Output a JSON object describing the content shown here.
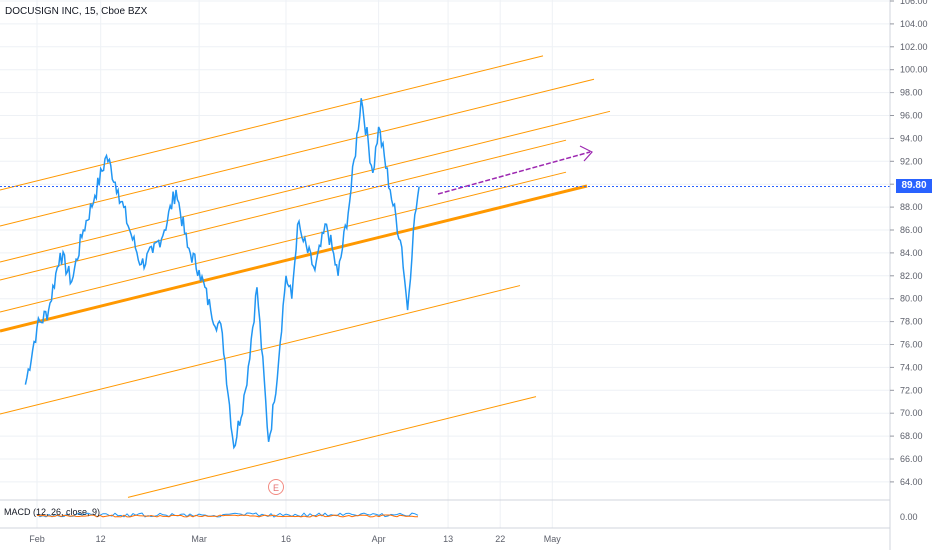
{
  "header": {
    "title": "DOCUSIGN INC, 15, Cboe BZX"
  },
  "indicator": {
    "macd_label": "MACD (12, 26, close, 9)",
    "macd_value": "0.00"
  },
  "price_tag": {
    "value": "89.80",
    "color": "#2962ff"
  },
  "earnings_badge": {
    "letter": "E"
  },
  "colors": {
    "price_line": "#2196f3",
    "pitchfork": "#ff9800",
    "projection_arrow": "#9c27b0",
    "grid": "#eef1f5",
    "last_price_line": "#2962ff"
  },
  "chart_data": {
    "type": "line",
    "title": "DOCUSIGN INC, 15, Cboe BZX",
    "xlabel": "",
    "ylabel": "",
    "ylim": [
      62.5,
      106.5
    ],
    "y_ticks": [
      "106.00",
      "104.00",
      "102.00",
      "100.00",
      "98.00",
      "96.00",
      "94.00",
      "92.00",
      "90.00",
      "88.00",
      "86.00",
      "84.00",
      "82.00",
      "80.00",
      "78.00",
      "76.00",
      "74.00",
      "72.00",
      "70.00",
      "68.00",
      "66.00",
      "64.00"
    ],
    "x_ticks": [
      "Feb",
      "12",
      "Mar",
      "16",
      "Apr",
      "13",
      "22",
      "May"
    ],
    "last_price": 89.8,
    "grid": true,
    "series": [
      {
        "name": "DOCU",
        "x": [
          "Jan 30",
          "Feb 1",
          "Feb 3",
          "Feb 5",
          "Feb 7",
          "Feb 9",
          "Feb 11",
          "Feb 13",
          "Feb 15",
          "Feb 17",
          "Feb 19",
          "Feb 21",
          "Feb 23",
          "Feb 25",
          "Feb 27",
          "Mar 1",
          "Mar 3",
          "Mar 5",
          "Mar 7",
          "Mar 9",
          "Mar 11",
          "Mar 13",
          "Mar 14",
          "Mar 16",
          "Mar 17",
          "Mar 18",
          "Mar 19",
          "Mar 21",
          "Mar 23",
          "Mar 25",
          "Mar 27",
          "Mar 29",
          "Mar 31",
          "Apr 1",
          "Apr 3",
          "Apr 5",
          "Apr 6",
          "Apr 7",
          "Apr 8"
        ],
        "values": [
          72.5,
          77.5,
          79.0,
          84.0,
          81.5,
          86.0,
          89.0,
          92.5,
          89.5,
          86.0,
          83.0,
          84.0,
          86.0,
          89.5,
          84.5,
          82.5,
          79.0,
          77.0,
          67.0,
          72.0,
          81.0,
          67.5,
          71.0,
          82.0,
          80.0,
          86.5,
          85.0,
          82.5,
          86.5,
          82.0,
          88.5,
          97.5,
          91.0,
          95.0,
          89.5,
          84.5,
          79.0,
          86.0,
          89.8
        ]
      }
    ],
    "annotations": [
      "Pitchfork channel",
      "Projection arrow",
      "E"
    ]
  }
}
